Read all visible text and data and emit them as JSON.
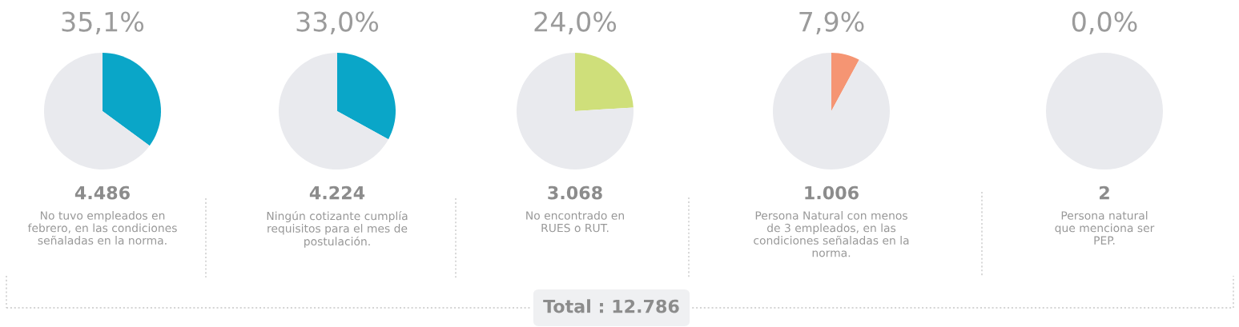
{
  "chart_data": [
    {
      "type": "pie",
      "categories": [
        null,
        null
      ],
      "values": [
        35.1,
        64.9
      ],
      "colors": [
        "#0aa6c8",
        "#e9eaee"
      ],
      "value_labels": [
        "35,1%",
        null
      ],
      "annotations": [
        "4.486",
        "No tuvo empleados en\nfebrero, en las condiciones\nseñaladas en la norma."
      ]
    },
    {
      "type": "pie",
      "categories": [
        null,
        null
      ],
      "values": [
        33.0,
        67.0
      ],
      "colors": [
        "#0aa6c8",
        "#e9eaee"
      ],
      "value_labels": [
        "33,0%",
        null
      ],
      "annotations": [
        "4.224",
        "Ningún cotizante cumplía\nrequisitos para el mes de\npostulación."
      ]
    },
    {
      "type": "pie",
      "categories": [
        null,
        null
      ],
      "values": [
        24.0,
        76.0
      ],
      "colors": [
        "#cfdf7a",
        "#e9eaee"
      ],
      "value_labels": [
        "24,0%",
        null
      ],
      "annotations": [
        "3.068",
        "No encontrado en\nRUES o RUT."
      ]
    },
    {
      "type": "pie",
      "categories": [
        null,
        null
      ],
      "values": [
        7.9,
        92.1
      ],
      "colors": [
        "#f59573",
        "#e9eaee"
      ],
      "value_labels": [
        "7,9%",
        null
      ],
      "annotations": [
        "1.006",
        "Persona Natural con menos\nde 3 empleados, en las\ncondiciones señaladas en la\nnorma."
      ]
    },
    {
      "type": "pie",
      "categories": [
        null,
        null
      ],
      "values": [
        0.0,
        100.0
      ],
      "colors": [
        null,
        "#e9eaee"
      ],
      "value_labels": [
        "0,0%",
        null
      ],
      "annotations": [
        "2",
        "Persona natural\nque menciona ser\nPEP."
      ]
    },
    {
      "type": "other",
      "annotations": [
        "Total : 12.786"
      ]
    }
  ]
}
